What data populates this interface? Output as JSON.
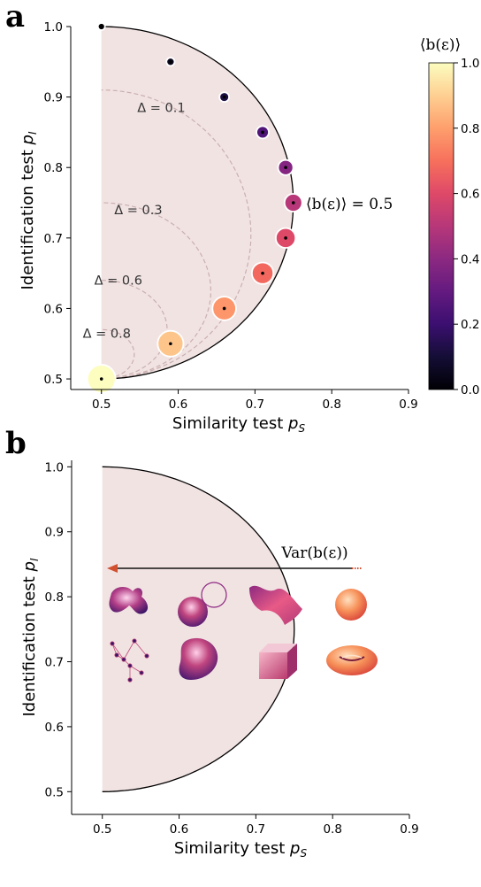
{
  "colors": {
    "region_fill": "#f2e3e3",
    "arrow": "#d05030",
    "contour": "#c9afaf"
  },
  "chart_data": [
    {
      "panel": "a",
      "type": "scatter",
      "xlabel": "Similarity test p_S",
      "ylabel": "Identification test p_I",
      "xlim": [
        0.46,
        0.9
      ],
      "ylim": [
        0.485,
        1.0
      ],
      "xticks": [
        0.5,
        0.6,
        0.7,
        0.8,
        0.9
      ],
      "yticks": [
        0.5,
        0.6,
        0.7,
        0.8,
        0.9,
        1.0
      ],
      "grid": false,
      "points": [
        {
          "x": 0.5,
          "y": 1.0,
          "b": 0.0
        },
        {
          "x": 0.59,
          "y": 0.95,
          "b": 0.05
        },
        {
          "x": 0.66,
          "y": 0.9,
          "b": 0.12
        },
        {
          "x": 0.71,
          "y": 0.85,
          "b": 0.25
        },
        {
          "x": 0.74,
          "y": 0.8,
          "b": 0.38
        },
        {
          "x": 0.75,
          "y": 0.75,
          "b": 0.5
        },
        {
          "x": 0.74,
          "y": 0.7,
          "b": 0.6
        },
        {
          "x": 0.71,
          "y": 0.65,
          "b": 0.68
        },
        {
          "x": 0.66,
          "y": 0.6,
          "b": 0.78
        },
        {
          "x": 0.59,
          "y": 0.55,
          "b": 0.88
        },
        {
          "x": 0.5,
          "y": 0.5,
          "b": 1.0
        }
      ],
      "contours": [
        {
          "label": "Δ = 0.1",
          "delta": 0.1
        },
        {
          "label": "Δ = 0.3",
          "delta": 0.3
        },
        {
          "label": "Δ = 0.6",
          "delta": 0.6
        },
        {
          "label": "Δ = 0.8",
          "delta": 0.8
        }
      ],
      "annotation": "⟨b(ε)⟩ = 0.5",
      "colorbar": {
        "label": "⟨b(ε)⟩",
        "min": 0.0,
        "max": 1.0,
        "ticks": [
          "0.0",
          "0.2",
          "0.4",
          "0.6",
          "0.8",
          "1.0"
        ],
        "colormap": "magma"
      }
    },
    {
      "panel": "b",
      "type": "area",
      "xlabel": "Similarity test p_S",
      "ylabel": "Identification test p_I",
      "xlim": [
        0.46,
        0.9
      ],
      "ylim": [
        0.465,
        1.01
      ],
      "xticks": [
        0.5,
        0.6,
        0.7,
        0.8,
        0.9
      ],
      "yticks": [
        0.5,
        0.6,
        0.7,
        0.8,
        0.9,
        1.0
      ],
      "grid": false,
      "arrow_label": "Var(b(ε))",
      "icons": [
        "blob-shape",
        "sphere-with-ring",
        "ribbon",
        "sphere",
        "network-graph",
        "rounded-blob",
        "cube",
        "torus"
      ]
    }
  ],
  "texts": {
    "panel_a": "a",
    "panel_b": "b"
  }
}
